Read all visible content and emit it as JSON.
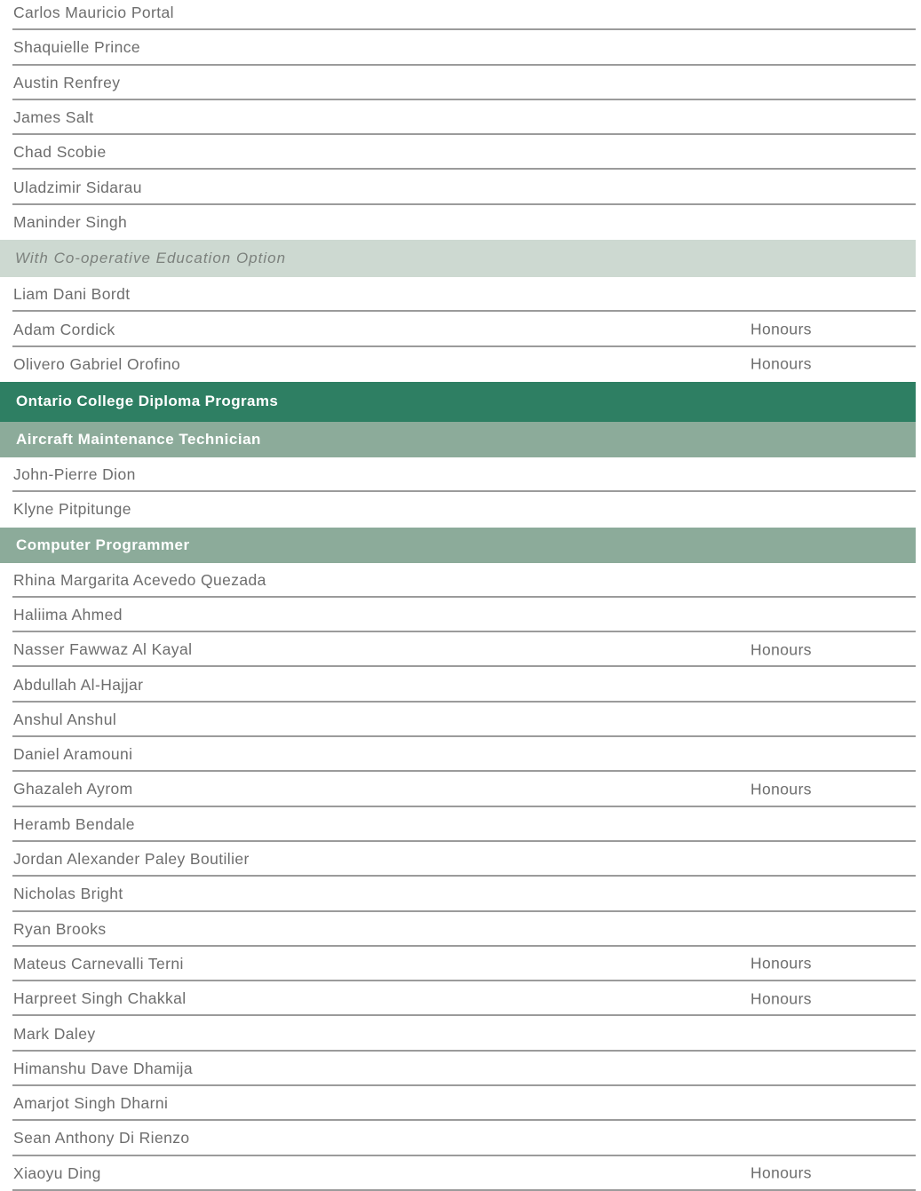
{
  "labels": {
    "honours": "Honours"
  },
  "colors": {
    "section_dark": "#2e7f63",
    "section_medium": "#8cab9a",
    "section_light": "#cdd9d1",
    "header_text": "#ffffff",
    "subsection_text": "#7c817d",
    "name_text": "#6d6d6d",
    "divider": "#9b9b9b",
    "page_background": "#ffffff"
  },
  "rows": [
    {
      "type": "name",
      "name": "Carlos Mauricio Portal",
      "honours": false
    },
    {
      "type": "name",
      "name": "Shaquielle Prince",
      "honours": false
    },
    {
      "type": "name",
      "name": "Austin Renfrey",
      "honours": false
    },
    {
      "type": "name",
      "name": "James Salt",
      "honours": false
    },
    {
      "type": "name",
      "name": "Chad Scobie",
      "honours": false
    },
    {
      "type": "name",
      "name": "Uladzimir Sidarau",
      "honours": false
    },
    {
      "type": "name",
      "name": "Maninder Singh",
      "honours": false
    },
    {
      "type": "subsection",
      "label": "With Co-operative Education Option"
    },
    {
      "type": "name",
      "name": "Liam Dani Bordt",
      "honours": false
    },
    {
      "type": "name",
      "name": "Adam Cordick",
      "honours": true
    },
    {
      "type": "name",
      "name": "Olivero Gabriel Orofino",
      "honours": true
    },
    {
      "type": "group",
      "label": "Ontario College Diploma Programs"
    },
    {
      "type": "program",
      "label": "Aircraft Maintenance Technician"
    },
    {
      "type": "name",
      "name": "John-Pierre Dion",
      "honours": false
    },
    {
      "type": "name",
      "name": "Klyne Pitpitunge",
      "honours": false
    },
    {
      "type": "program",
      "label": "Computer Programmer"
    },
    {
      "type": "name",
      "name": "Rhina Margarita Acevedo Quezada",
      "honours": false
    },
    {
      "type": "name",
      "name": "Haliima Ahmed",
      "honours": false
    },
    {
      "type": "name",
      "name": "Nasser Fawwaz Al Kayal",
      "honours": true
    },
    {
      "type": "name",
      "name": "Abdullah Al-Hajjar",
      "honours": false
    },
    {
      "type": "name",
      "name": "Anshul Anshul",
      "honours": false
    },
    {
      "type": "name",
      "name": "Daniel Aramouni",
      "honours": false
    },
    {
      "type": "name",
      "name": "Ghazaleh Ayrom",
      "honours": true
    },
    {
      "type": "name",
      "name": "Heramb Bendale",
      "honours": false
    },
    {
      "type": "name",
      "name": "Jordan Alexander Paley Boutilier",
      "honours": false
    },
    {
      "type": "name",
      "name": "Nicholas Bright",
      "honours": false
    },
    {
      "type": "name",
      "name": "Ryan Brooks",
      "honours": false
    },
    {
      "type": "name",
      "name": "Mateus Carnevalli Terni",
      "honours": true
    },
    {
      "type": "name",
      "name": "Harpreet Singh Chakkal",
      "honours": true
    },
    {
      "type": "name",
      "name": "Mark Daley",
      "honours": false
    },
    {
      "type": "name",
      "name": "Himanshu Dave Dhamija",
      "honours": false
    },
    {
      "type": "name",
      "name": "Amarjot Singh Dharni",
      "honours": false
    },
    {
      "type": "name",
      "name": "Sean Anthony Di Rienzo",
      "honours": false
    },
    {
      "type": "name",
      "name": "Xiaoyu Ding",
      "honours": true
    }
  ]
}
